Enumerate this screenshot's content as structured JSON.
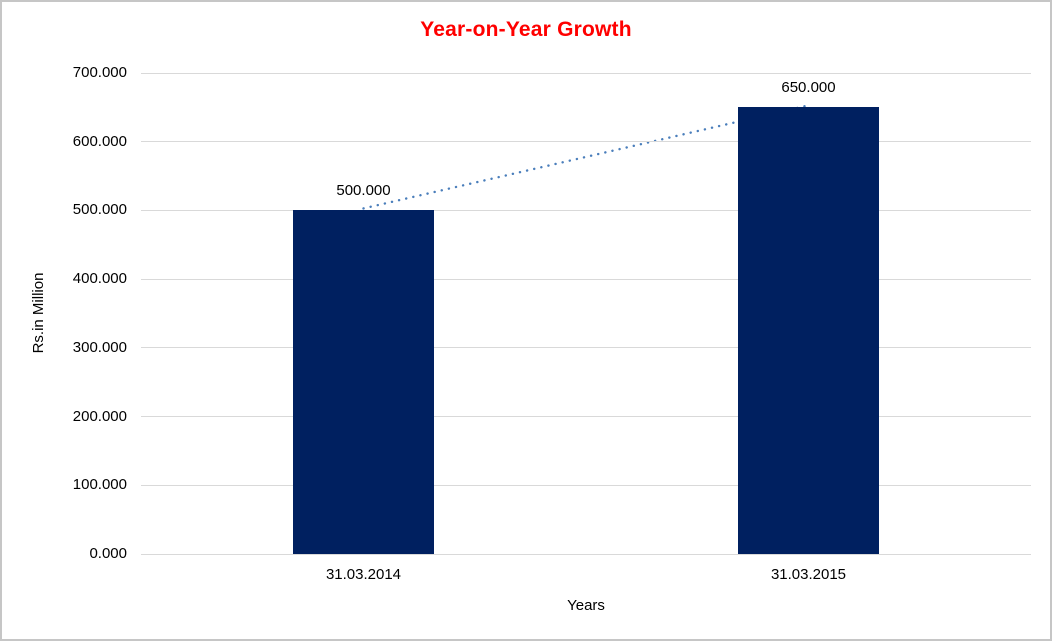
{
  "chart_data": {
    "type": "bar",
    "title": "Year-on-Year Growth",
    "title_color": "#ff0000",
    "categories": [
      "31.03.2014",
      "31.03.2015"
    ],
    "values": [
      500.0,
      650.0
    ],
    "data_labels": [
      "500.000",
      "650.000"
    ],
    "xlabel": "Years",
    "ylabel": "Rs.in Million",
    "ylim": [
      0,
      700
    ],
    "ytick_step": 100,
    "ytick_labels": [
      "0.000",
      "100.000",
      "200.000",
      "300.000",
      "400.000",
      "500.000",
      "600.000",
      "700.000"
    ],
    "bar_color": "#002060",
    "gridline_color": "#d9d9d9",
    "trendline": {
      "style": "dotted",
      "color": "#4a7ebb"
    },
    "legend": "none",
    "grid": "horizontal"
  }
}
